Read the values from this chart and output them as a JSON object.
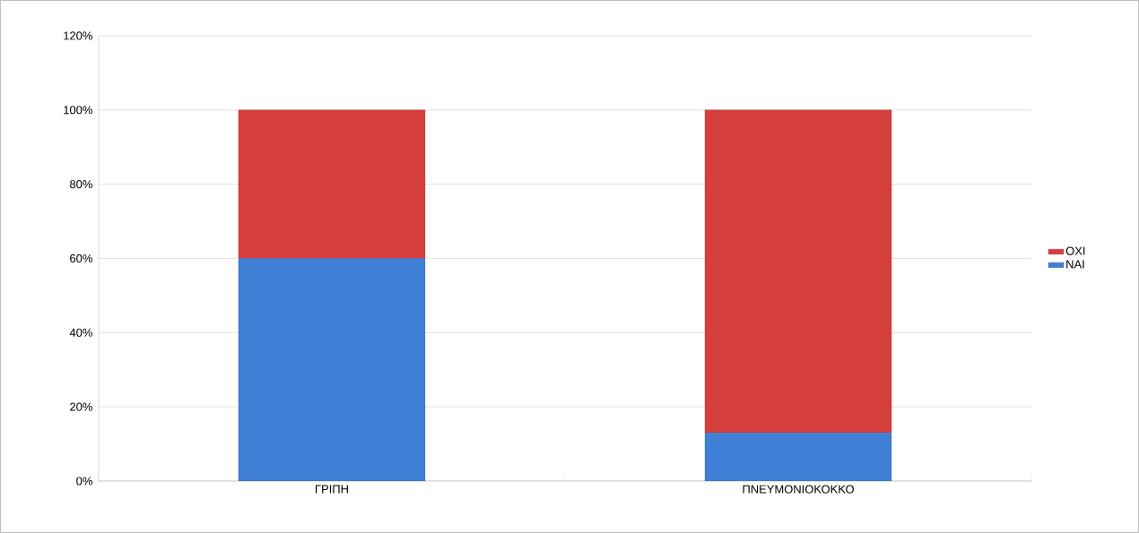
{
  "chart_data": {
    "type": "bar",
    "stacked": true,
    "categories": [
      "ΓΡΙΠΗ",
      "ΠΝΕΥΜΟΝΙΟΚΟΚΚΟ"
    ],
    "series": [
      {
        "name": "ΝΑΙ",
        "color": "#3f7fd6",
        "values": [
          60,
          13
        ]
      },
      {
        "name": "ΟΧΙ",
        "color": "#d63d3d",
        "values": [
          40,
          87
        ]
      }
    ],
    "ylim": [
      0,
      120
    ],
    "yticks": [
      {
        "value": 0,
        "label": "0%"
      },
      {
        "value": 20,
        "label": "20%"
      },
      {
        "value": 40,
        "label": "40%"
      },
      {
        "value": 60,
        "label": "60%"
      },
      {
        "value": 80,
        "label": "80%"
      },
      {
        "value": 100,
        "label": "100%"
      },
      {
        "value": 120,
        "label": "120%"
      }
    ],
    "grid": "y",
    "legend": "right"
  }
}
